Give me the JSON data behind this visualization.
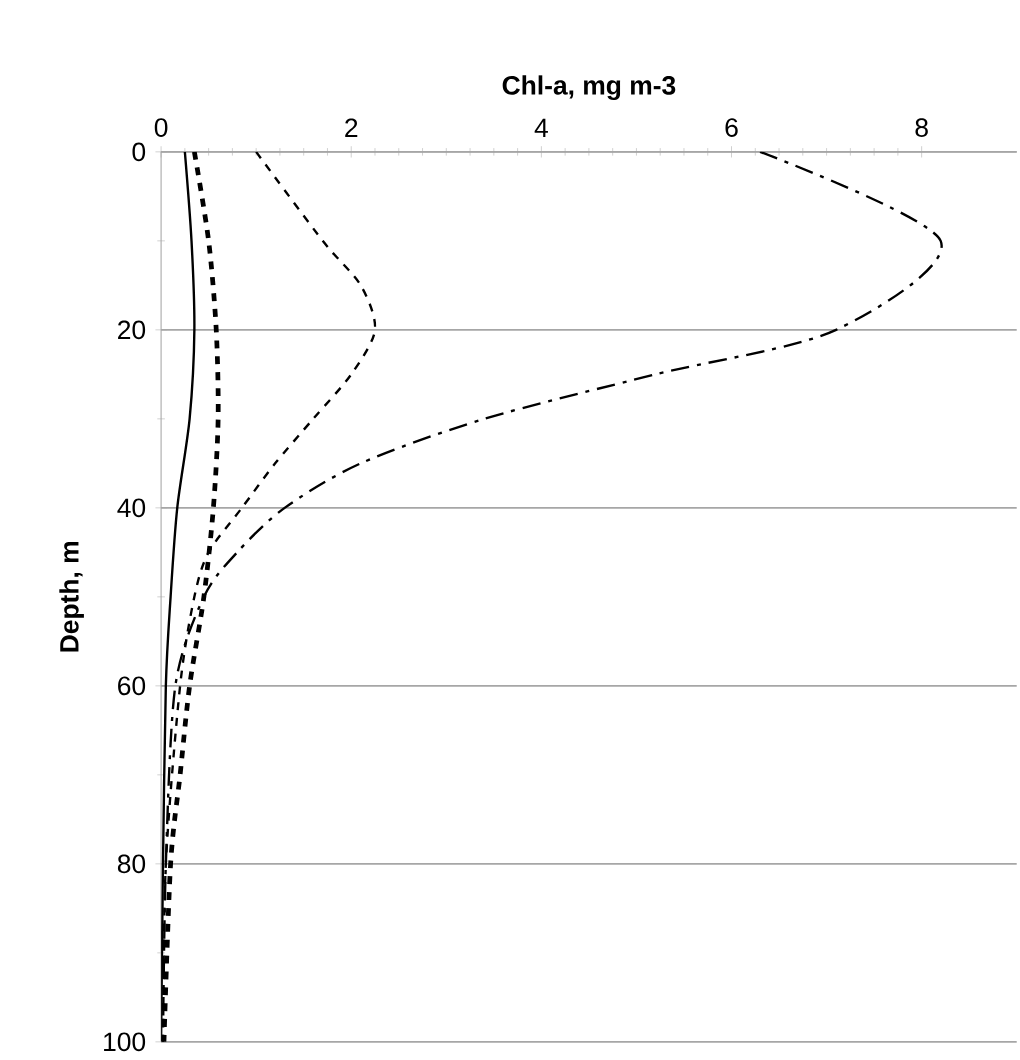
{
  "chart_data": {
    "type": "line",
    "xlabel": "Chl-a, mg m-3",
    "ylabel": "Depth, m",
    "xlim": [
      0,
      9
    ],
    "xticks": [
      0,
      2,
      4,
      6,
      8
    ],
    "ylim": [
      100,
      0
    ],
    "yticks": [
      0,
      20,
      40,
      60,
      80,
      100
    ],
    "grid": "y",
    "marker": "none",
    "series": [
      {
        "color": "#000000",
        "line_style": "solid",
        "x": [
          0.25,
          0.32,
          0.35,
          0.3,
          0.17,
          0.1,
          0.05,
          0.02,
          0.0
        ],
        "values": [
          0,
          10,
          20,
          30,
          40,
          50,
          60,
          80,
          100
        ]
      },
      {
        "color": "#000000",
        "line_style": "dashed",
        "x": [
          0.35,
          0.5,
          0.58,
          0.6,
          0.55,
          0.45,
          0.3,
          0.2,
          0.1,
          0.03
        ],
        "values": [
          0,
          10,
          20,
          30,
          40,
          50,
          60,
          70,
          80,
          100
        ]
      },
      {
        "color": "#000000",
        "line_style": "dashed",
        "x": [
          1.0,
          1.7,
          2.1,
          2.25,
          2.0,
          1.6,
          1.2,
          0.85,
          0.5,
          0.35,
          0.2,
          0.05,
          0.02
        ],
        "values": [
          0,
          10,
          15,
          20,
          25,
          30,
          35,
          40,
          45,
          50,
          60,
          80,
          100
        ]
      },
      {
        "color": "#000000",
        "line_style": "dashdot",
        "x": [
          6.3,
          8.2,
          7.1,
          5.2,
          3.4,
          2.1,
          1.3,
          0.8,
          0.45,
          0.15,
          0.05,
          0.02
        ],
        "values": [
          0,
          10,
          20,
          25,
          30,
          35,
          40,
          45,
          50,
          60,
          80,
          100
        ]
      }
    ]
  }
}
